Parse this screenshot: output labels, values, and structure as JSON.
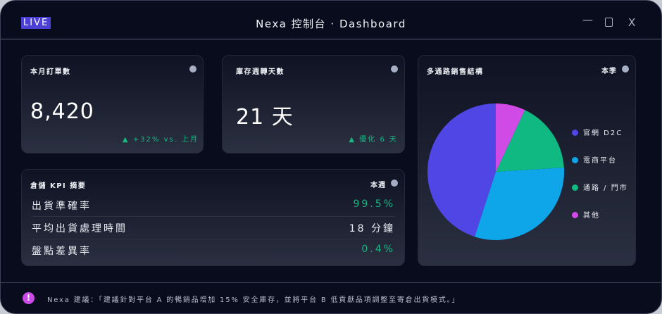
{
  "window": {
    "badge": "LIVE",
    "title": "Nexa 控制台 · Dashboard",
    "minimize_icon": "minimize-icon",
    "restore_icon": "restore-icon",
    "close_label": "X"
  },
  "orders": {
    "title": "本月訂單數",
    "value": "8,420",
    "delta": "+32% vs. 上月",
    "trend_icon": "triangle-up-icon"
  },
  "inventory": {
    "title": "庫存週轉天數",
    "value": "21 天",
    "delta": "優化 6 天",
    "trend_icon": "triangle-up-icon"
  },
  "kpi": {
    "title": "倉儲 KPI 摘要",
    "period": "本週",
    "rows": [
      {
        "label": "出貨準確率",
        "value": "99.5%",
        "color": "#16b884"
      },
      {
        "label": "平均出貨處理時間",
        "value": "18 分鐘",
        "color": "#eef0f5"
      },
      {
        "label": "盤點差異率",
        "value": "0.4%",
        "color": "#16b884"
      }
    ]
  },
  "channels": {
    "title": "多通路銷售結構",
    "period": "本季"
  },
  "chart_data": {
    "type": "pie",
    "categories": [
      "官網 D2C",
      "電商平台",
      "通路 / 門市",
      "其他"
    ],
    "values": [
      45,
      31,
      17,
      7
    ],
    "colors": [
      "#4f46e5",
      "#0ea5e9",
      "#10b981",
      "#d04ae6"
    ],
    "legend": "right",
    "direction": "counterclockwise from top"
  },
  "footer": {
    "icon": "exclamation-icon",
    "text": "Nexa 建議：「建議針對平台 A 的暢銷品增加 15% 安全庫存，並將平台 B 低貢獻品項調整至寄倉出貨模式。」"
  }
}
